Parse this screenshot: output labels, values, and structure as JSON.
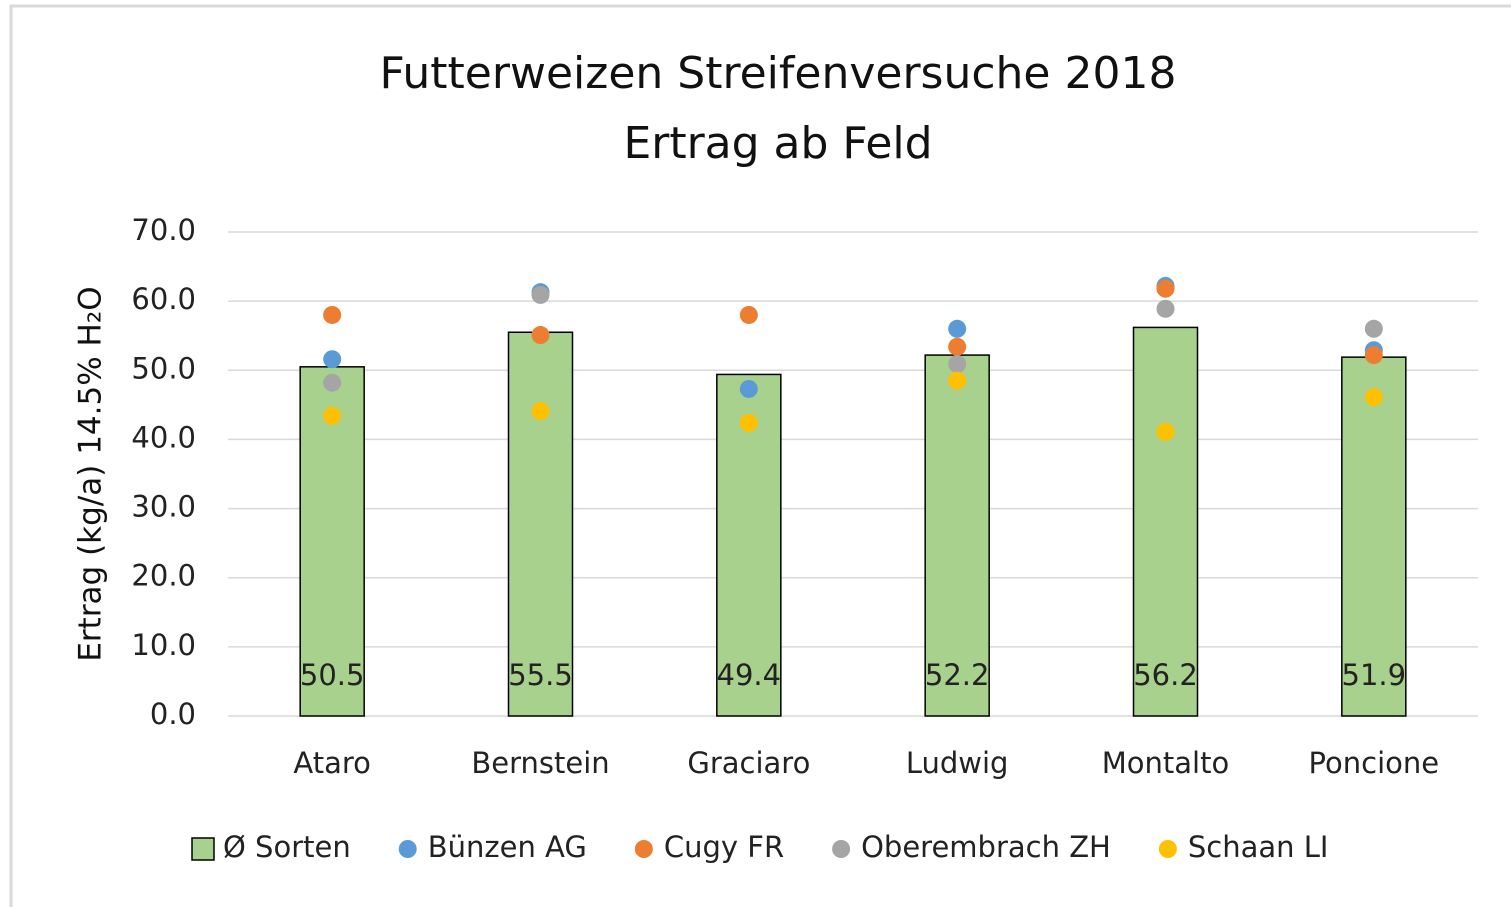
{
  "chart_data": {
    "type": "bar",
    "title": [
      "Futterweizen Streifenversuche 2018",
      "Ertrag ab Feld"
    ],
    "y_label": "Ertrag (kg/a) 14.5% H₂O",
    "categories": [
      "Ataro",
      "Bernstein",
      "Graciaro",
      "Ludwig",
      "Montalto",
      "Poncione"
    ],
    "ylim": [
      0,
      70
    ],
    "yticks": [
      {
        "value": 0,
        "label": "0.0"
      },
      {
        "value": 10,
        "label": "10.0"
      },
      {
        "value": 20,
        "label": "20.0"
      },
      {
        "value": 30,
        "label": "30.0"
      },
      {
        "value": 40,
        "label": "40.0"
      },
      {
        "value": 50,
        "label": "50.0"
      },
      {
        "value": 60,
        "label": "60.0"
      },
      {
        "value": 70,
        "label": "70.0"
      }
    ],
    "grid": true,
    "legend": "bottom",
    "series": [
      {
        "name": "Ø Sorten",
        "type": "bar",
        "color": "#a9d18e",
        "values": [
          50.5,
          55.5,
          49.4,
          52.2,
          56.2,
          51.9
        ]
      },
      {
        "name": "Bünzen AG",
        "type": "scatter",
        "color": "#5b9bd5",
        "values": [
          51.6,
          61.3,
          47.3,
          56.0,
          62.2,
          52.9
        ]
      },
      {
        "name": "Cugy FR",
        "type": "scatter",
        "color": "#ed7d31",
        "values": [
          58.0,
          55.1,
          58.0,
          53.4,
          61.8,
          52.2
        ]
      },
      {
        "name": "Oberembrach ZH",
        "type": "scatter",
        "color": "#a5a5a5",
        "values": [
          48.2,
          60.9,
          null,
          50.9,
          58.9,
          56.0
        ]
      },
      {
        "name": "Schaan LI",
        "type": "scatter",
        "color": "#ffc000",
        "values": [
          43.4,
          44.1,
          42.4,
          48.5,
          41.1,
          46.1
        ]
      }
    ]
  }
}
